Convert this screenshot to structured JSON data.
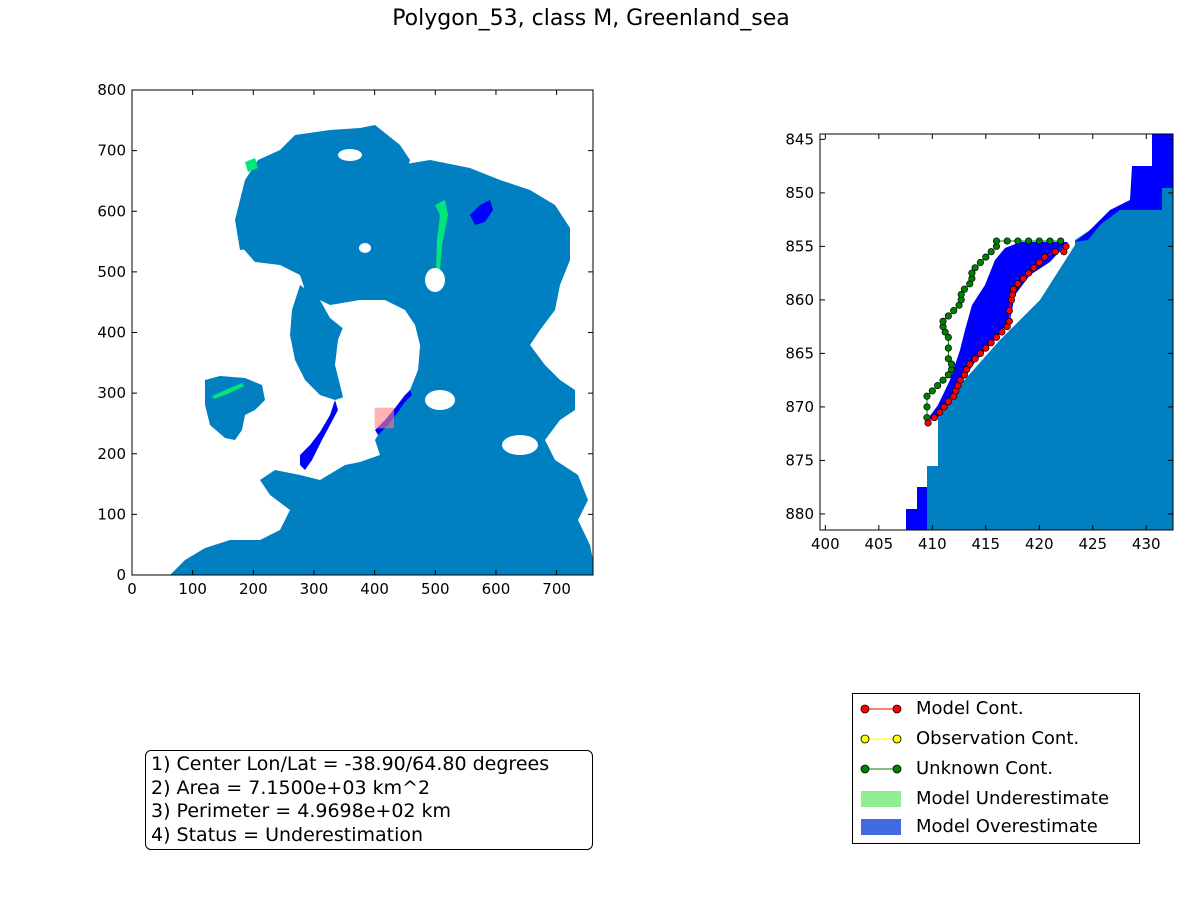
{
  "title": "Polygon_53, class M, Greenland_sea",
  "colors": {
    "ocean_model": "#0080c0",
    "overestimate_area": "#0000ff",
    "underestimate_area": "#00e67a",
    "model_cont": "#ff0000",
    "observation_cont": "#ffff00",
    "unknown_cont": "#008000",
    "legend_underestimate": "#90ee90",
    "legend_overestimate": "#4169e1",
    "zoom_marker": "#ff8080"
  },
  "chart_data": [
    {
      "type": "heatmap",
      "name": "overview-map",
      "xlim": [
        0,
        760
      ],
      "ylim": [
        0,
        800
      ],
      "xticks": [
        0,
        100,
        200,
        300,
        400,
        500,
        600,
        700
      ],
      "yticks": [
        0,
        100,
        200,
        300,
        400,
        500,
        600,
        700,
        800
      ],
      "zoom_box": {
        "x": [
          400,
          432
        ],
        "y": [
          242,
          276
        ]
      },
      "grid": false
    },
    {
      "type": "heatmap",
      "name": "zoom-map",
      "xlim": [
        399.5,
        432.5
      ],
      "ylim": [
        881.5,
        844.5
      ],
      "y_inverted": true,
      "xticks": [
        400,
        405,
        410,
        415,
        420,
        425,
        430
      ],
      "yticks": [
        845,
        850,
        855,
        860,
        865,
        870,
        875,
        880
      ],
      "grid": false,
      "model_contour": [
        [
          409.6,
          871.5
        ],
        [
          410.2,
          871.0
        ],
        [
          410.7,
          870.5
        ],
        [
          411.1,
          870.0
        ],
        [
          411.5,
          869.5
        ],
        [
          412.0,
          869.0
        ],
        [
          412.2,
          868.5
        ],
        [
          412.4,
          868.0
        ],
        [
          412.6,
          867.5
        ],
        [
          413.0,
          867.0
        ],
        [
          413.2,
          866.5
        ],
        [
          413.5,
          866.0
        ],
        [
          414.0,
          865.5
        ],
        [
          414.5,
          865.0
        ],
        [
          415.0,
          864.5
        ],
        [
          415.5,
          864.0
        ],
        [
          416.0,
          863.5
        ],
        [
          416.5,
          863.0
        ],
        [
          417.0,
          862.5
        ],
        [
          417.2,
          862.0
        ],
        [
          417.2,
          861.0
        ],
        [
          417.4,
          860.0
        ],
        [
          417.5,
          859.5
        ],
        [
          417.6,
          859.0
        ],
        [
          418.0,
          858.5
        ],
        [
          418.5,
          858.0
        ],
        [
          419.0,
          857.5
        ],
        [
          419.5,
          857.0
        ],
        [
          420.0,
          856.5
        ],
        [
          420.5,
          856.0
        ],
        [
          421.5,
          855.5
        ],
        [
          422.3,
          855.5
        ],
        [
          422.5,
          855.0
        ]
      ],
      "unknown_contour": [
        [
          409.5,
          871.0
        ],
        [
          409.5,
          870.0
        ],
        [
          409.5,
          869.0
        ],
        [
          410.0,
          868.5
        ],
        [
          410.5,
          868.0
        ],
        [
          411.0,
          867.5
        ],
        [
          411.5,
          867.0
        ],
        [
          411.8,
          866.5
        ],
        [
          411.8,
          866.0
        ],
        [
          411.5,
          865.5
        ],
        [
          411.5,
          864.5
        ],
        [
          411.5,
          863.5
        ],
        [
          411.2,
          863.0
        ],
        [
          411.0,
          862.5
        ],
        [
          411.0,
          862.0
        ],
        [
          411.5,
          861.5
        ],
        [
          412.0,
          861.0
        ],
        [
          412.5,
          860.5
        ],
        [
          412.7,
          860.0
        ],
        [
          412.7,
          859.5
        ],
        [
          413.0,
          859.0
        ],
        [
          413.5,
          858.5
        ],
        [
          413.7,
          858.0
        ],
        [
          413.7,
          857.5
        ],
        [
          414.0,
          857.0
        ],
        [
          414.5,
          856.5
        ],
        [
          415.0,
          856.0
        ],
        [
          415.5,
          855.5
        ],
        [
          416.0,
          855.0
        ],
        [
          416.0,
          854.5
        ],
        [
          417.0,
          854.5
        ],
        [
          418.0,
          854.5
        ],
        [
          419.0,
          854.5
        ],
        [
          420.0,
          854.5
        ],
        [
          421.0,
          854.5
        ],
        [
          422.0,
          854.5
        ]
      ]
    },
    {
      "type": "table",
      "name": "polygon-stats",
      "lines": [
        "1) Center Lon/Lat = -38.90/64.80 degrees",
        "2) Area = 7.1500e+03 km^2",
        "3) Perimeter = 4.9698e+02 km",
        "4) Status = Underestimation"
      ]
    }
  ],
  "legend": [
    {
      "label": "Model Cont.",
      "kind": "line-marker",
      "color": "#ff0000"
    },
    {
      "label": "Observation Cont.",
      "kind": "line-marker",
      "color": "#ffff00"
    },
    {
      "label": "Unknown Cont.",
      "kind": "line-marker",
      "color": "#008000"
    },
    {
      "label": "Model Underestimate",
      "kind": "patch",
      "color": "#90ee90"
    },
    {
      "label": "Model Overestimate",
      "kind": "patch",
      "color": "#4169e1"
    }
  ]
}
